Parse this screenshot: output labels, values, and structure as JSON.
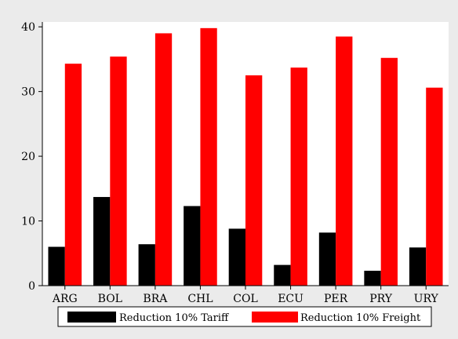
{
  "chart_data": {
    "type": "bar",
    "categories": [
      "ARG",
      "BOL",
      "BRA",
      "CHL",
      "COL",
      "ECU",
      "PER",
      "PRY",
      "URY"
    ],
    "series": [
      {
        "name": "Reduction 10% Tariff",
        "color": "#000000",
        "values": [
          6.0,
          13.7,
          6.4,
          12.3,
          8.8,
          3.2,
          8.2,
          2.3,
          5.9
        ]
      },
      {
        "name": "Reduction 10% Freight",
        "color": "#ff0000",
        "values": [
          34.3,
          35.4,
          39.0,
          39.8,
          32.5,
          33.7,
          38.5,
          35.2,
          30.6
        ]
      }
    ],
    "yticks": [
      "0",
      "10",
      "20",
      "30",
      "40"
    ],
    "ylim": [
      0,
      40.75
    ],
    "grid": false,
    "legend_position": "bottom"
  }
}
